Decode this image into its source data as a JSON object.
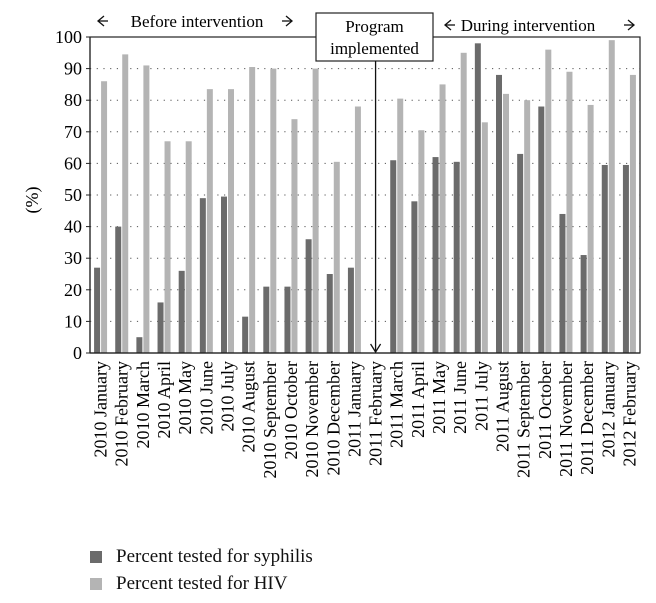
{
  "chart_data": {
    "type": "bar",
    "ylabel": "(%)",
    "ylim": [
      0,
      100
    ],
    "yticks": [
      0,
      10,
      20,
      30,
      40,
      50,
      60,
      70,
      80,
      90,
      100
    ],
    "grid": "dotted horizontal",
    "categories": [
      "2010 January",
      "2010 February",
      "2010 March",
      "2010 April",
      "2010 May",
      "2010 June",
      "2010 July",
      "2010 August",
      "2010 September",
      "2010 October",
      "2010 November",
      "2010 December",
      "2011 January",
      "2011 February",
      "2011 March",
      "2011 April",
      "2011 May",
      "2011 June",
      "2011 July",
      "2011 August",
      "2011 September",
      "2011 October",
      "2011 November",
      "2011 December",
      "2012 January",
      "2012 February"
    ],
    "series": [
      {
        "name": "Percent tested for syphilis",
        "color": "#6b6b6b",
        "values": [
          27,
          40,
          5,
          16,
          26,
          49,
          49.5,
          11.5,
          21,
          21,
          36,
          25,
          27,
          null,
          61,
          48,
          62,
          60.5,
          98,
          88,
          63,
          78,
          44,
          31,
          59.5,
          59.5
        ]
      },
      {
        "name": "Percent tested for HIV",
        "color": "#b4b4b4",
        "values": [
          86,
          94.5,
          91,
          67,
          67,
          83.5,
          83.5,
          90.5,
          90,
          74,
          90,
          60.5,
          78,
          null,
          80.5,
          70.5,
          85,
          95,
          73,
          82,
          80,
          96,
          89,
          78.5,
          99,
          88
        ]
      }
    ],
    "annotations": {
      "before": "Before intervention",
      "program_line1": "Program",
      "program_line2": "implemented",
      "during": "During intervention"
    }
  },
  "legend": {
    "title": "",
    "position": "bottom-left"
  },
  "colors": {
    "syphilis": "#6b6b6b",
    "hiv": "#b4b4b4"
  }
}
